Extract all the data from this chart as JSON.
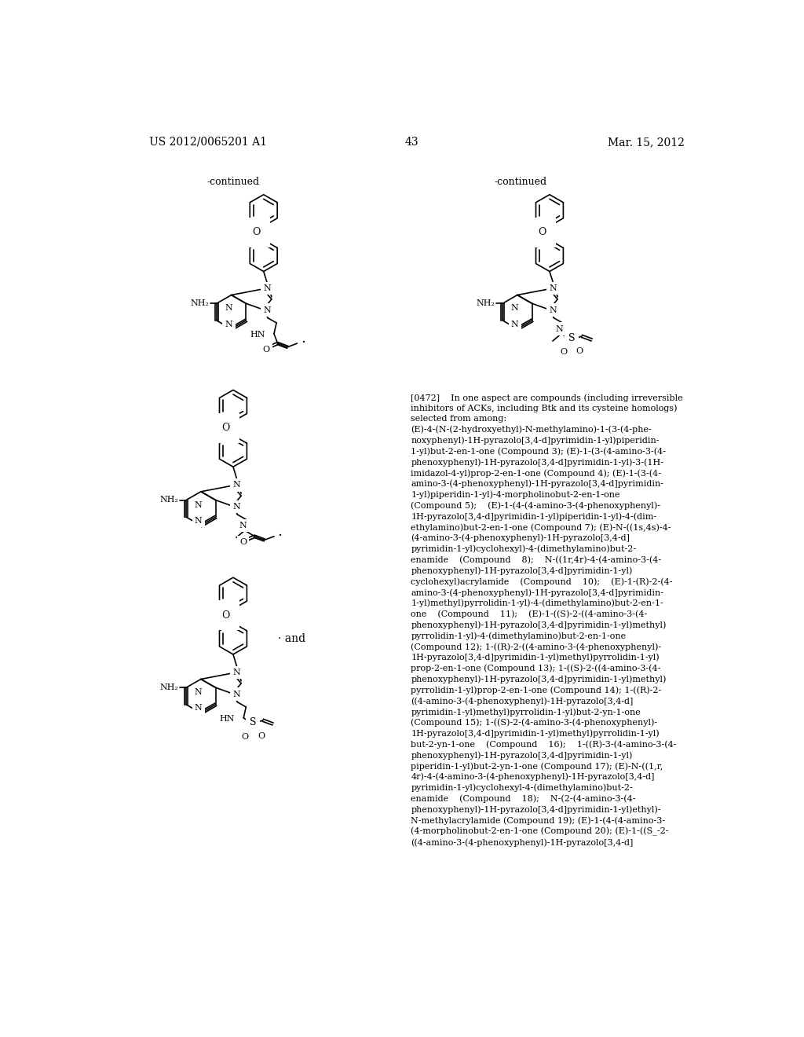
{
  "background_color": "#ffffff",
  "page_number": "43",
  "patent_number": "US 2012/0065201 A1",
  "patent_date": "Mar. 15, 2012"
}
